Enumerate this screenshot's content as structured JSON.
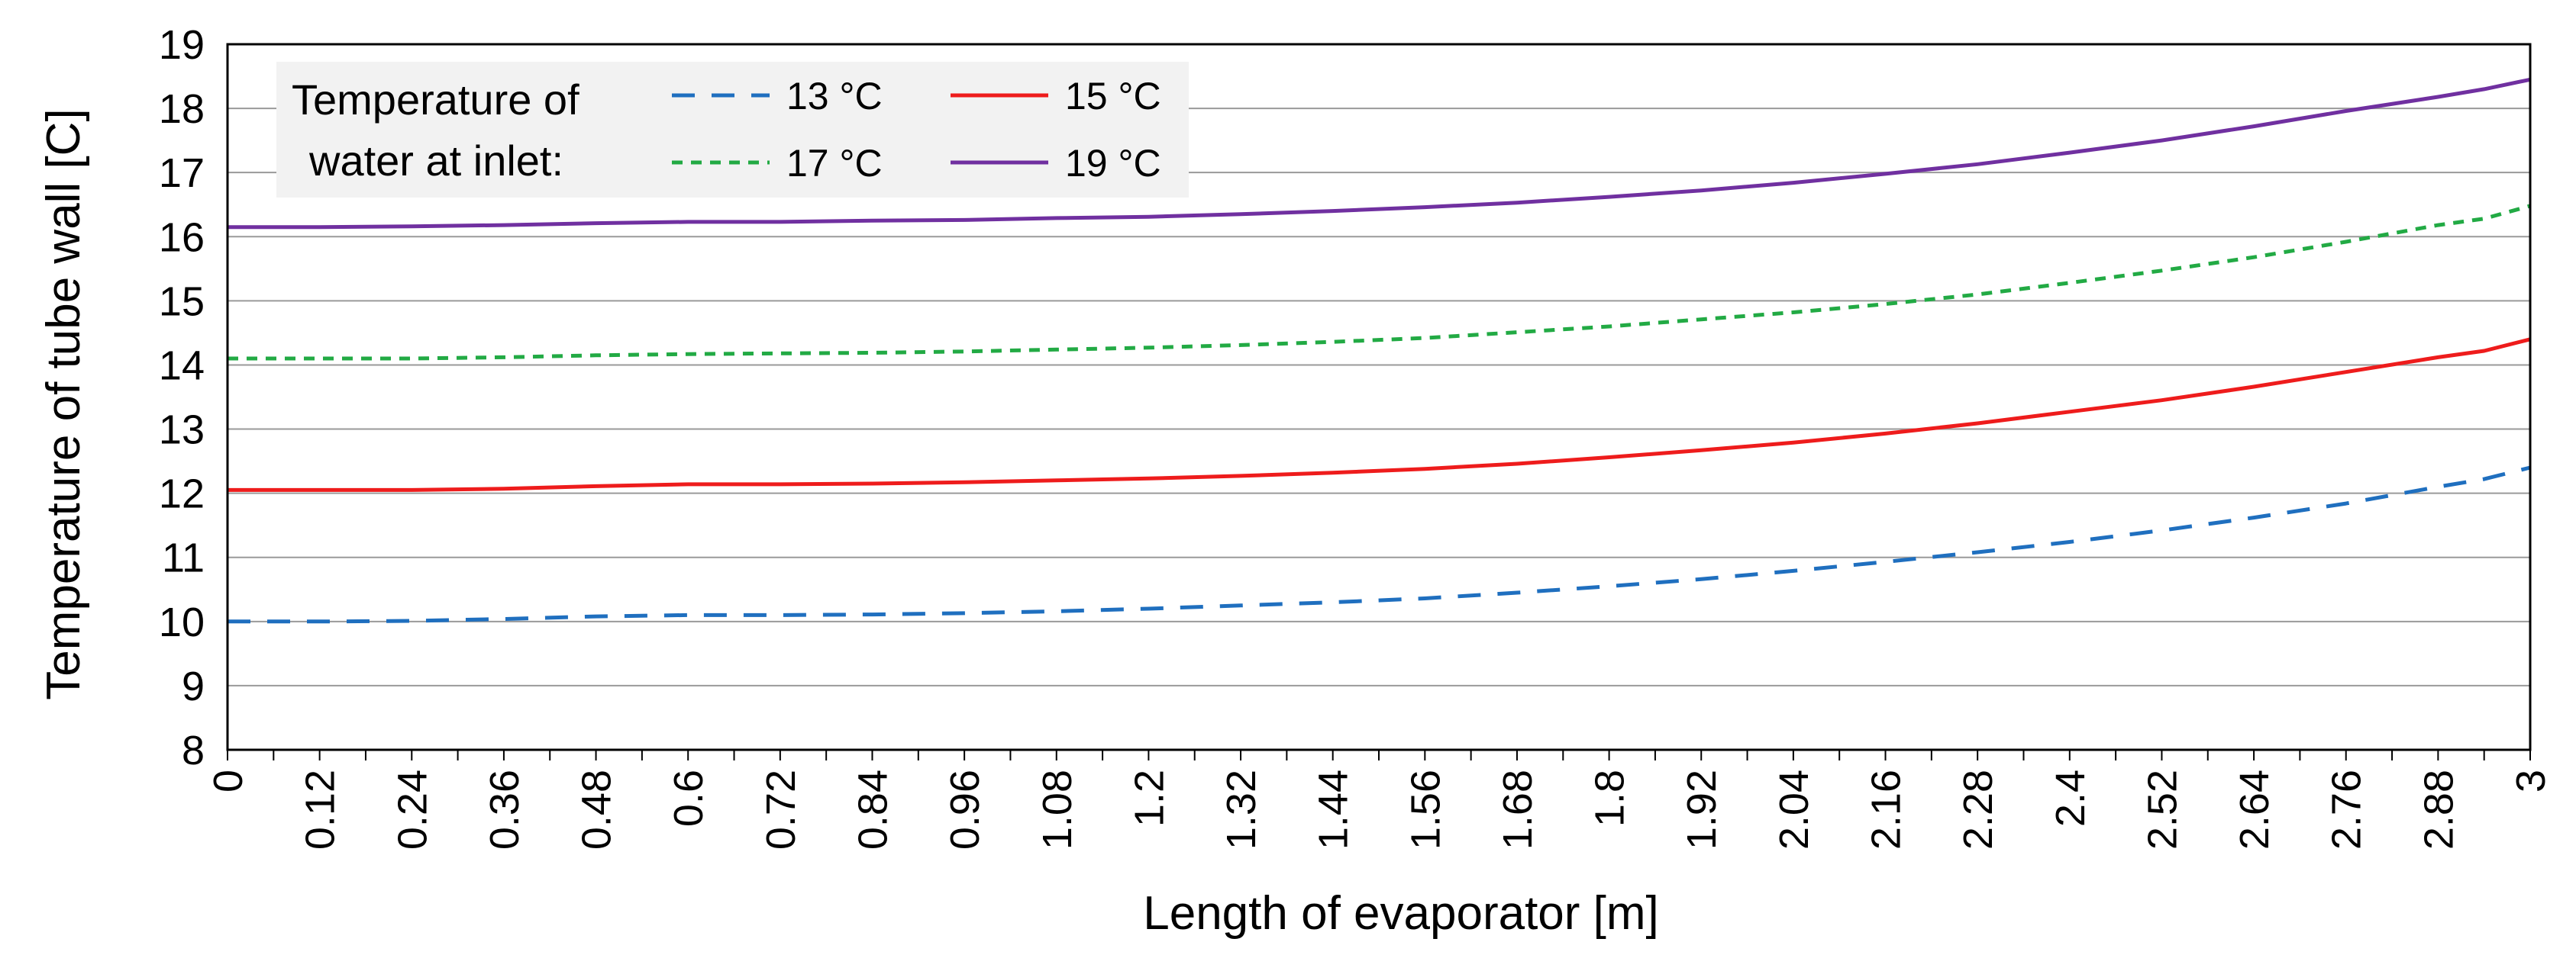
{
  "chart_data": {
    "type": "line",
    "title": "",
    "xlabel": "Length of evaporator [m]",
    "ylabel": "Temperature of tube  wall  [C]",
    "xlim": [
      0,
      3
    ],
    "ylim": [
      8,
      19
    ],
    "grid": true,
    "x_ticks": [
      "0",
      "0.12",
      "0.24",
      "0.36",
      "0.48",
      "0.6",
      "0.72",
      "0.84",
      "0.96",
      "1.08",
      "1.2",
      "1.32",
      "1.44",
      "1.56",
      "1.68",
      "1.8",
      "1.92",
      "2.04",
      "2.16",
      "2.28",
      "2.4",
      "2.52",
      "2.64",
      "2.76",
      "2.88",
      "3"
    ],
    "y_ticks": [
      "8",
      "9",
      "10",
      "11",
      "12",
      "13",
      "14",
      "15",
      "16",
      "17",
      "18",
      "19"
    ],
    "legend": {
      "title_line1": "Temperature of",
      "title_line2": "water at inlet:",
      "placement": "top-left"
    },
    "x": [
      0,
      0.12,
      0.24,
      0.36,
      0.48,
      0.6,
      0.72,
      0.84,
      0.96,
      1.08,
      1.2,
      1.32,
      1.44,
      1.56,
      1.68,
      1.8,
      1.92,
      2.04,
      2.16,
      2.28,
      2.4,
      2.52,
      2.64,
      2.76,
      2.88,
      2.94,
      3
    ],
    "series": [
      {
        "name": "13 °C",
        "color": "#1f6fbf",
        "dash": "dashed",
        "values": [
          10.0,
          10.0,
          10.01,
          10.04,
          10.08,
          10.1,
          10.1,
          10.11,
          10.13,
          10.16,
          10.2,
          10.25,
          10.3,
          10.36,
          10.45,
          10.55,
          10.66,
          10.79,
          10.93,
          11.08,
          11.24,
          11.42,
          11.62,
          11.84,
          12.1,
          12.22,
          12.4
        ]
      },
      {
        "name": "15 °C",
        "color": "#ee1c1c",
        "dash": "solid",
        "values": [
          12.05,
          12.05,
          12.05,
          12.07,
          12.11,
          12.14,
          12.14,
          12.15,
          12.17,
          12.2,
          12.23,
          12.27,
          12.32,
          12.38,
          12.46,
          12.56,
          12.67,
          12.79,
          12.93,
          13.09,
          13.27,
          13.45,
          13.66,
          13.89,
          14.12,
          14.22,
          14.4
        ]
      },
      {
        "name": "17 °C",
        "color": "#22aa44",
        "dash": "dotted",
        "values": [
          14.1,
          14.1,
          14.1,
          14.12,
          14.15,
          14.17,
          14.18,
          14.19,
          14.21,
          14.24,
          14.27,
          14.31,
          14.36,
          14.42,
          14.51,
          14.6,
          14.71,
          14.82,
          14.95,
          15.1,
          15.28,
          15.47,
          15.68,
          15.92,
          16.18,
          16.28,
          16.48
        ]
      },
      {
        "name": "19 °C",
        "color": "#7030a0",
        "dash": "solid",
        "values": [
          16.15,
          16.15,
          16.16,
          16.18,
          16.21,
          16.23,
          16.23,
          16.25,
          16.26,
          16.29,
          16.31,
          16.35,
          16.4,
          16.46,
          16.53,
          16.62,
          16.72,
          16.84,
          16.98,
          17.13,
          17.31,
          17.5,
          17.72,
          17.96,
          18.18,
          18.3,
          18.45
        ]
      }
    ]
  }
}
